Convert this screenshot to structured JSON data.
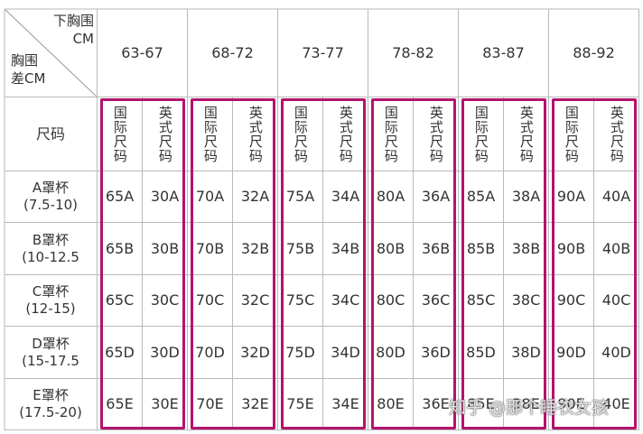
{
  "table": {
    "corner": {
      "top_lines": [
        "下胸围",
        "CM"
      ],
      "bottom_lines": [
        "胸围",
        "差CM"
      ]
    },
    "columns": [
      "63-67",
      "68-72",
      "73-77",
      "78-82",
      "83-87",
      "88-92"
    ],
    "size_row": {
      "label": "尺码",
      "sub_headers": [
        "国际尺码",
        "英式尺码"
      ]
    },
    "rows": [
      {
        "label_lines": [
          "A罩杯",
          "(7.5-10)"
        ],
        "cells": [
          "65A",
          "30A",
          "70A",
          "32A",
          "75A",
          "34A",
          "80A",
          "36A",
          "85A",
          "38A",
          "90A",
          "40A"
        ]
      },
      {
        "label_lines": [
          "B罩杯",
          "(10-12.5"
        ],
        "cells": [
          "65B",
          "30B",
          "70B",
          "32B",
          "75B",
          "34B",
          "80B",
          "36B",
          "85B",
          "38B",
          "90B",
          "40B"
        ]
      },
      {
        "label_lines": [
          "C罩杯",
          "(12-15)"
        ],
        "cells": [
          "65C",
          "30C",
          "70C",
          "32C",
          "75C",
          "34C",
          "80C",
          "36C",
          "85C",
          "38C",
          "90C",
          "40C"
        ]
      },
      {
        "label_lines": [
          "D罩杯",
          "(15-17.5"
        ],
        "cells": [
          "65D",
          "30D",
          "70D",
          "32D",
          "75D",
          "34D",
          "80D",
          "36D",
          "85D",
          "38D",
          "90D",
          "40D"
        ]
      },
      {
        "label_lines": [
          "E罩杯",
          "(17.5-20)"
        ],
        "cells": [
          "65E",
          "30E",
          "70E",
          "32E",
          "75E",
          "34E",
          "80E",
          "36E",
          "85E",
          "38E",
          "90E",
          "40E"
        ]
      }
    ]
  },
  "watermark": "知乎 @那个睡衣女孩"
}
